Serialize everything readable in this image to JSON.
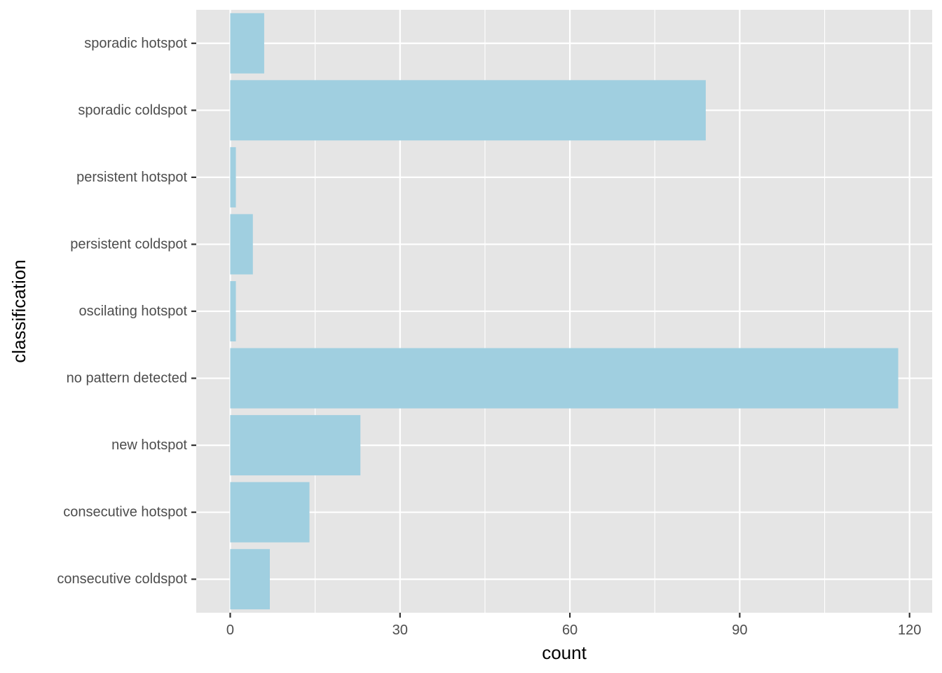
{
  "chart_data": {
    "type": "bar",
    "orientation": "horizontal",
    "categories": [
      "consecutive coldspot",
      "consecutive hotspot",
      "new hotspot",
      "no pattern detected",
      "oscilating hotspot",
      "persistent coldspot",
      "persistent hotspot",
      "sporadic coldspot",
      "sporadic hotspot"
    ],
    "values": [
      7,
      14,
      23,
      118,
      1,
      4,
      1,
      84,
      6
    ],
    "xlabel": "count",
    "ylabel": "classification",
    "xlim": [
      -6,
      124
    ],
    "xticks": [
      0,
      30,
      60,
      90,
      120
    ],
    "grid": true,
    "legend": "none",
    "colors": {
      "bar": "#a0cfe0",
      "panel": "#e5e5e5",
      "grid": "#ffffff",
      "tick": "#333333",
      "tick_label": "#4d4d4d"
    }
  }
}
